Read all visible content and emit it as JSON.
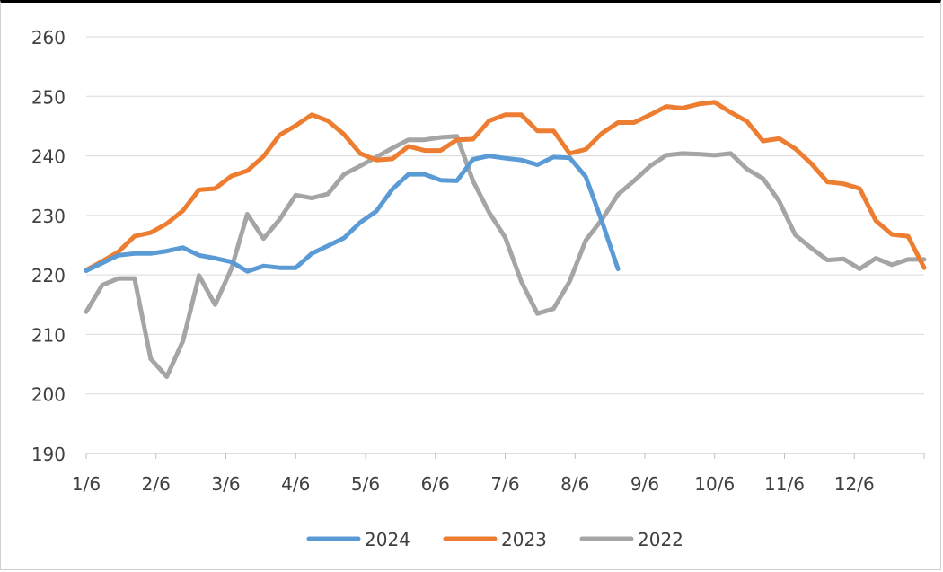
{
  "chart_data": {
    "type": "line",
    "title": "",
    "xlabel": "",
    "ylabel": "",
    "ylim": [
      190,
      260
    ],
    "yticks": [
      190,
      200,
      210,
      220,
      230,
      240,
      250,
      260
    ],
    "x_tick_labels": [
      "1/6",
      "2/6",
      "3/6",
      "4/6",
      "5/6",
      "6/6",
      "7/6",
      "8/6",
      "9/6",
      "10/6",
      "11/6",
      "12/6"
    ],
    "x_unit": "week index (0 = 1/6, 52 weeks per year)",
    "grid": "horizontal",
    "legend_position": "bottom",
    "series": [
      {
        "name": "2024",
        "color": "#5b9bd5",
        "x": [
          0,
          1,
          2,
          3,
          4,
          5,
          6,
          7,
          8,
          9,
          10,
          11,
          12,
          13,
          14,
          15,
          16,
          17,
          18,
          19,
          20,
          21,
          22,
          23,
          24,
          25,
          26,
          27,
          28,
          29,
          30,
          31,
          32,
          33
        ],
        "y": [
          220.7,
          222.0,
          223.3,
          223.6,
          223.6,
          224.0,
          224.6,
          223.3,
          222.8,
          222.2,
          220.6,
          221.5,
          221.2,
          221.2,
          223.6,
          224.9,
          226.2,
          228.8,
          230.7,
          234.4,
          236.9,
          236.9,
          235.9,
          235.8,
          239.4,
          240.0,
          239.6,
          239.3,
          238.5,
          239.8,
          239.7,
          236.5,
          229.0,
          221.0
        ]
      },
      {
        "name": "2023",
        "color": "#ed7d31",
        "x": [
          0,
          1,
          2,
          3,
          4,
          5,
          6,
          7,
          8,
          9,
          10,
          11,
          12,
          13,
          14,
          15,
          16,
          17,
          18,
          19,
          20,
          21,
          22,
          23,
          24,
          25,
          26,
          27,
          28,
          29,
          30,
          31,
          32,
          33,
          34,
          35,
          36,
          37,
          38,
          39,
          40,
          41,
          42,
          43,
          44,
          45,
          46,
          47,
          48,
          49,
          50,
          51,
          52
        ],
        "y": [
          220.8,
          222.3,
          223.9,
          226.5,
          227.1,
          228.6,
          230.8,
          234.3,
          234.5,
          236.6,
          237.5,
          239.9,
          243.5,
          245.1,
          246.9,
          245.9,
          243.6,
          240.4,
          239.3,
          239.5,
          241.6,
          240.9,
          240.9,
          242.7,
          242.8,
          245.9,
          246.9,
          246.9,
          244.2,
          244.2,
          240.4,
          241.1,
          243.8,
          245.6,
          245.6,
          246.9,
          248.3,
          248.0,
          248.7,
          249.0,
          247.3,
          245.8,
          242.5,
          242.9,
          241.2,
          238.7,
          235.6,
          235.3,
          234.5,
          229.1,
          226.8,
          226.5,
          221.2
        ]
      },
      {
        "name": "2022",
        "color": "#a5a5a5",
        "x": [
          0,
          1,
          2,
          3,
          4,
          5,
          6,
          7,
          8,
          9,
          10,
          11,
          12,
          13,
          14,
          15,
          16,
          17,
          18,
          19,
          20,
          21,
          22,
          23,
          24,
          25,
          26,
          27,
          28,
          29,
          30,
          31,
          32,
          33,
          34,
          35,
          36,
          37,
          38,
          39,
          40,
          41,
          42,
          43,
          44,
          45,
          46,
          47,
          48,
          49,
          50,
          51,
          52
        ],
        "y": [
          213.8,
          218.3,
          219.4,
          219.4,
          205.9,
          202.9,
          208.9,
          219.9,
          215.0,
          221.0,
          230.2,
          226.1,
          229.3,
          233.4,
          232.9,
          233.6,
          236.9,
          238.3,
          239.8,
          241.3,
          242.7,
          242.7,
          243.1,
          243.3,
          235.8,
          230.5,
          226.3,
          218.9,
          213.5,
          214.3,
          218.9,
          225.8,
          229.3,
          233.5,
          235.8,
          238.3,
          240.1,
          240.4,
          240.3,
          240.1,
          240.4,
          237.8,
          236.2,
          232.4,
          226.7,
          224.5,
          222.5,
          222.7,
          221.0,
          222.8,
          221.7,
          222.6,
          222.6
        ]
      }
    ]
  }
}
